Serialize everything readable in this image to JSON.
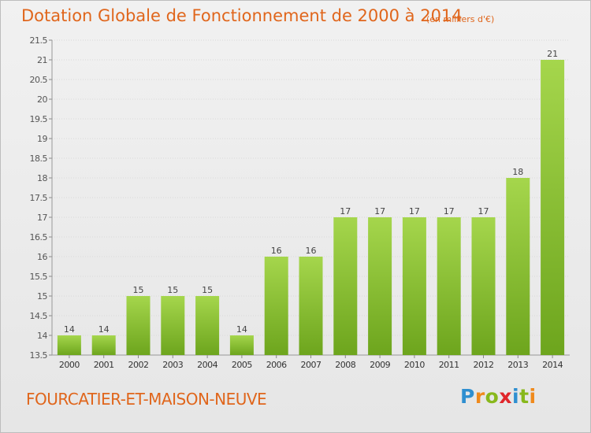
{
  "header": {
    "title": "Dotation Globale de Fonctionnement de 2000 à 2014",
    "subtitle": "(en milliers d'€)"
  },
  "footer": {
    "commune": "FOURCATIER-ET-MAISON-NEUVE",
    "logo_letters": [
      "P",
      "r",
      "o",
      "x",
      "i",
      "t",
      "i"
    ],
    "logo_colors": [
      "#2f8fd0",
      "#f08a1c",
      "#88b81c",
      "#e0262b",
      "#2f8fd0",
      "#88b81c",
      "#f08a1c"
    ]
  },
  "chart_data": {
    "type": "bar",
    "categories": [
      "2000",
      "2001",
      "2002",
      "2003",
      "2004",
      "2005",
      "2006",
      "2007",
      "2008",
      "2009",
      "2010",
      "2011",
      "2012",
      "2013",
      "2014"
    ],
    "values": [
      14,
      14,
      15,
      15,
      15,
      14,
      16,
      16,
      17,
      17,
      17,
      17,
      17,
      18,
      21
    ],
    "data_labels": [
      "14",
      "14",
      "15",
      "15",
      "15",
      "14",
      "16",
      "16",
      "17",
      "17",
      "17",
      "17",
      "17",
      "18",
      "21"
    ],
    "ylim": [
      13.5,
      21.5
    ],
    "yticks": [
      "13.5",
      "14",
      "14.5",
      "15",
      "15.5",
      "16",
      "16.5",
      "17",
      "17.5",
      "18",
      "18.5",
      "19",
      "19.5",
      "20",
      "20.5",
      "21",
      "21.5"
    ],
    "grid": true,
    "bar_color_top": "#a5d64c",
    "bar_color_bottom": "#6da51d"
  }
}
